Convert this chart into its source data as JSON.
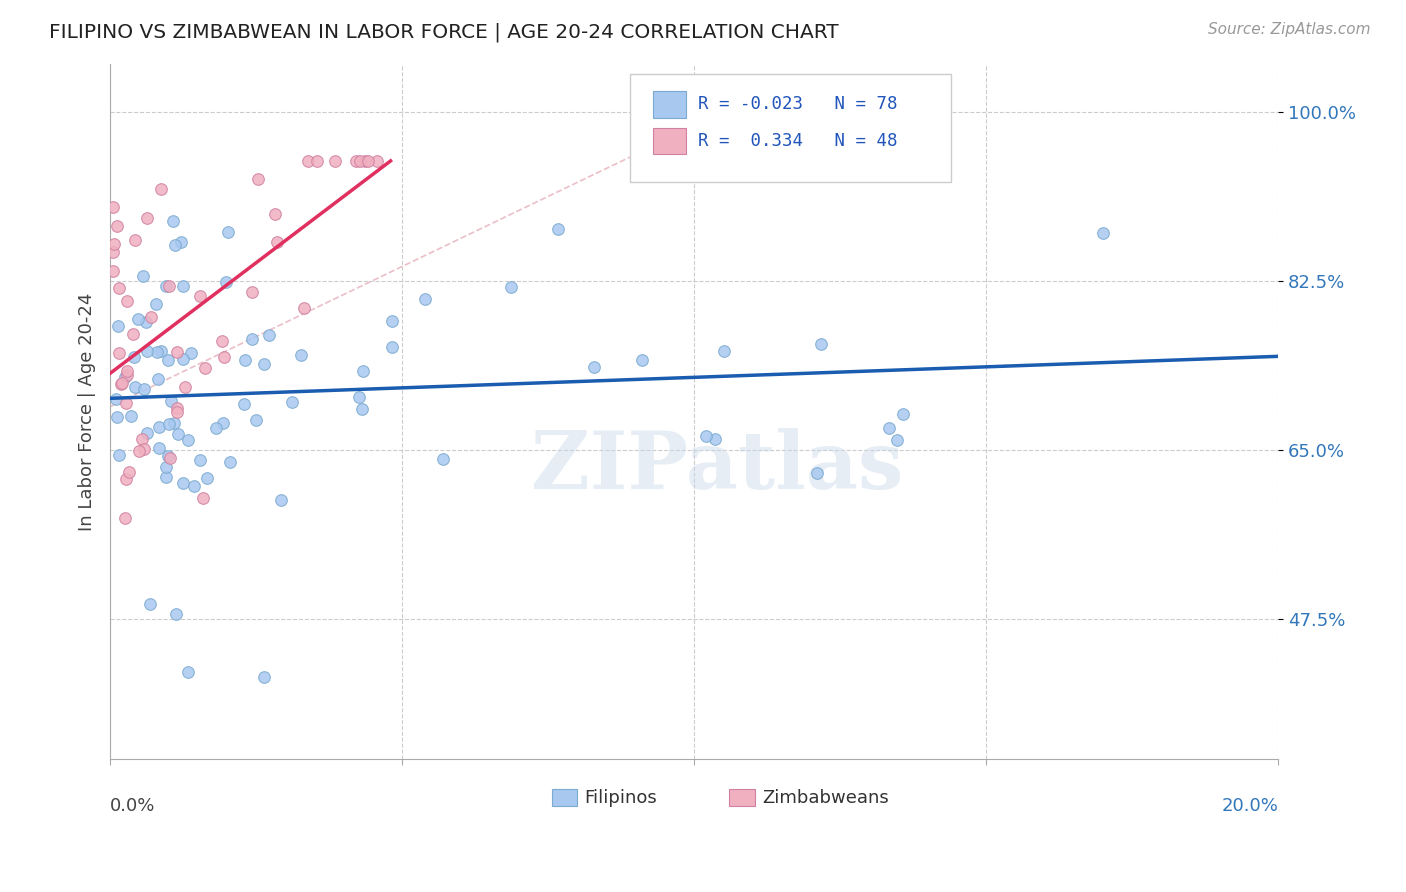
{
  "title": "FILIPINO VS ZIMBABWEAN IN LABOR FORCE | AGE 20-24 CORRELATION CHART",
  "source": "Source: ZipAtlas.com",
  "ylabel": "In Labor Force | Age 20-24",
  "watermark": "ZIPatlas",
  "filipino_color": "#a8c8f0",
  "filipino_edge": "#7aaad0",
  "zimbabwean_color": "#f0b0c0",
  "zimbabwean_edge": "#d080a0",
  "trendline_filipino_color": "#1a5cb0",
  "trendline_zimbabwean_color": "#e03060",
  "diagonal_color": "#e8b8c0",
  "background_color": "#ffffff",
  "R_filipino": -0.023,
  "N_filipino": 78,
  "R_zimbabwean": 0.334,
  "N_zimbabwean": 48,
  "ytick_vals": [
    0.475,
    0.65,
    0.825,
    1.0
  ],
  "ytick_labels": [
    "47.5%",
    "65.0%",
    "82.5%",
    "100.0%"
  ],
  "xmin": 0.0,
  "xmax": 0.2,
  "ymin": 0.33,
  "ymax": 1.05
}
